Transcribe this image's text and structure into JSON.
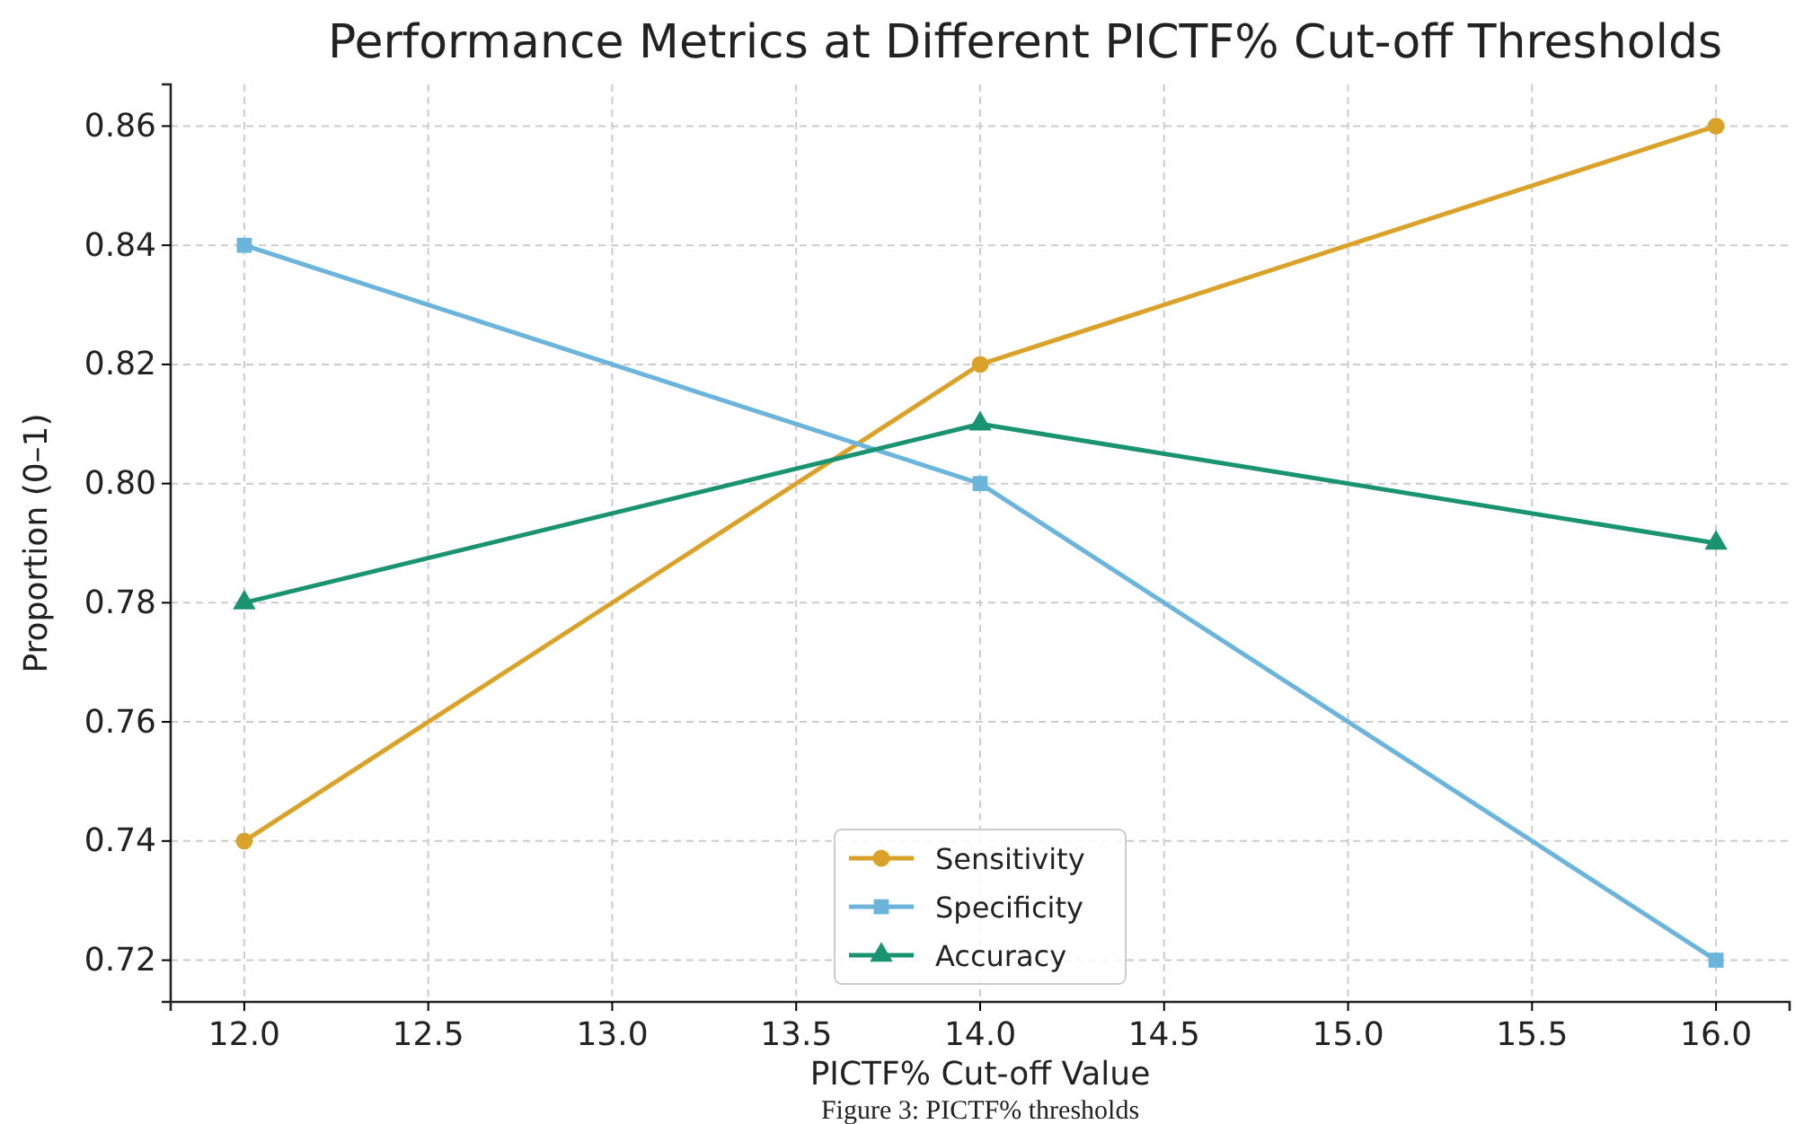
{
  "chart_data": {
    "type": "line",
    "title": "Performance Metrics at Different PICTF% Cut-off Thresholds",
    "xlabel": "PICTF% Cut-off Value",
    "ylabel": "Proportion (0–1)",
    "x": [
      12,
      14,
      16
    ],
    "series": [
      {
        "name": "Sensitivity",
        "color": "#dba229",
        "marker": "circle",
        "values": [
          0.74,
          0.82,
          0.86
        ]
      },
      {
        "name": "Specificity",
        "color": "#6bb5dc",
        "marker": "square",
        "values": [
          0.84,
          0.8,
          0.72
        ]
      },
      {
        "name": "Accuracy",
        "color": "#1a9370",
        "marker": "triangle",
        "values": [
          0.78,
          0.81,
          0.79
        ]
      }
    ],
    "xlim": [
      11.8,
      16.2
    ],
    "xticks": [
      {
        "value": 12,
        "label": "12.0"
      },
      {
        "value": 12.5,
        "label": "12.5"
      },
      {
        "value": 13,
        "label": "13.0"
      },
      {
        "value": 13.5,
        "label": "13.5"
      },
      {
        "value": 14,
        "label": "14.0"
      },
      {
        "value": 14.5,
        "label": "14.5"
      },
      {
        "value": 15,
        "label": "15.0"
      },
      {
        "value": 15.5,
        "label": "15.5"
      },
      {
        "value": 16,
        "label": "16.0"
      }
    ],
    "ylim": [
      0.713,
      0.867
    ],
    "yticks": [
      {
        "value": 0.72,
        "label": "0.72"
      },
      {
        "value": 0.74,
        "label": "0.74"
      },
      {
        "value": 0.76,
        "label": "0.76"
      },
      {
        "value": 0.78,
        "label": "0.78"
      },
      {
        "value": 0.8,
        "label": "0.80"
      },
      {
        "value": 0.82,
        "label": "0.82"
      },
      {
        "value": 0.84,
        "label": "0.84"
      },
      {
        "value": 0.86,
        "label": "0.86"
      }
    ],
    "grid": true,
    "legend": "bottom",
    "line_style": "solid",
    "annotations": [
      "Figure 3: PICTF% thresholds"
    ]
  }
}
